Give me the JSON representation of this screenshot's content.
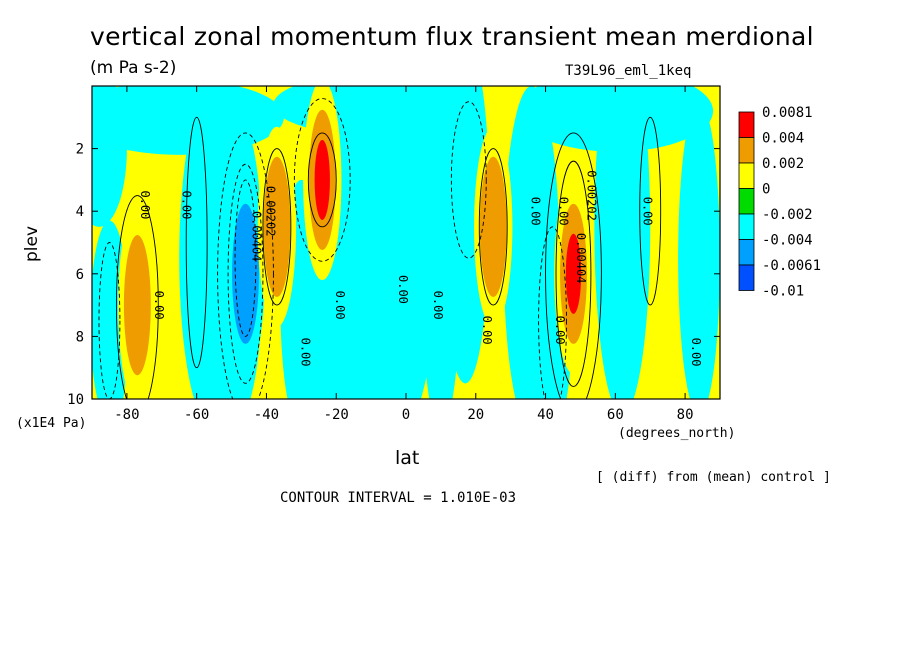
{
  "chart_data": {
    "type": "heatmap",
    "title": "vertical zonal momentum flux transient mean merdional",
    "units": "(m Pa s-2)",
    "run_label": "T39L96_eml_1keq",
    "xlabel": "lat",
    "x_units": "(degrees_north)",
    "ylabel": "plev",
    "y_units": "(x1E4 Pa)",
    "xlim": [
      -90,
      90
    ],
    "ylim": [
      10,
      0
    ],
    "x_ticks": [
      "-80",
      "-60",
      "-40",
      "-20",
      "0",
      "20",
      "40",
      "60",
      "80"
    ],
    "y_ticks": [
      "2",
      "4",
      "6",
      "8",
      "10"
    ],
    "contour_interval": "CONTOUR INTERVAL = 1.010E-03",
    "note": "[ (diff) from (mean) control ]",
    "legend": {
      "levels": [
        "0.0081",
        "0.004",
        "0.002",
        "0",
        "-0.002",
        "-0.004",
        "-0.0061",
        "-0.01"
      ],
      "colors": [
        "#ff0000",
        "#ee9c00",
        "#ffff00",
        "#00dc00",
        "#00ffff",
        "#00a0ff",
        "#0050ff"
      ]
    },
    "contour_labels": [
      "0.00",
      "0.00202",
      "0.00404"
    ],
    "features": [
      {
        "lat": -85,
        "plev": 7.5,
        "sign": "negative",
        "magnitude": "-0.004"
      },
      {
        "lat": -77,
        "plev": 7.0,
        "sign": "positive",
        "magnitude": "0.004"
      },
      {
        "lat": -46,
        "plev": 6.0,
        "sign": "negative",
        "magnitude": "-0.0061"
      },
      {
        "lat": -37,
        "plev": 4.5,
        "sign": "positive",
        "magnitude": "0.004"
      },
      {
        "lat": -24,
        "plev": 3.0,
        "sign": "positive",
        "magnitude": "0.0081"
      },
      {
        "lat": 18,
        "plev": 3.0,
        "sign": "negative",
        "magnitude": "-0.004"
      },
      {
        "lat": 25,
        "plev": 4.5,
        "sign": "positive",
        "magnitude": "0.004"
      },
      {
        "lat": 42,
        "plev": 7.8,
        "sign": "negative",
        "magnitude": "-0.004"
      },
      {
        "lat": 48,
        "plev": 6.0,
        "sign": "positive",
        "magnitude": "0.0081"
      }
    ]
  }
}
